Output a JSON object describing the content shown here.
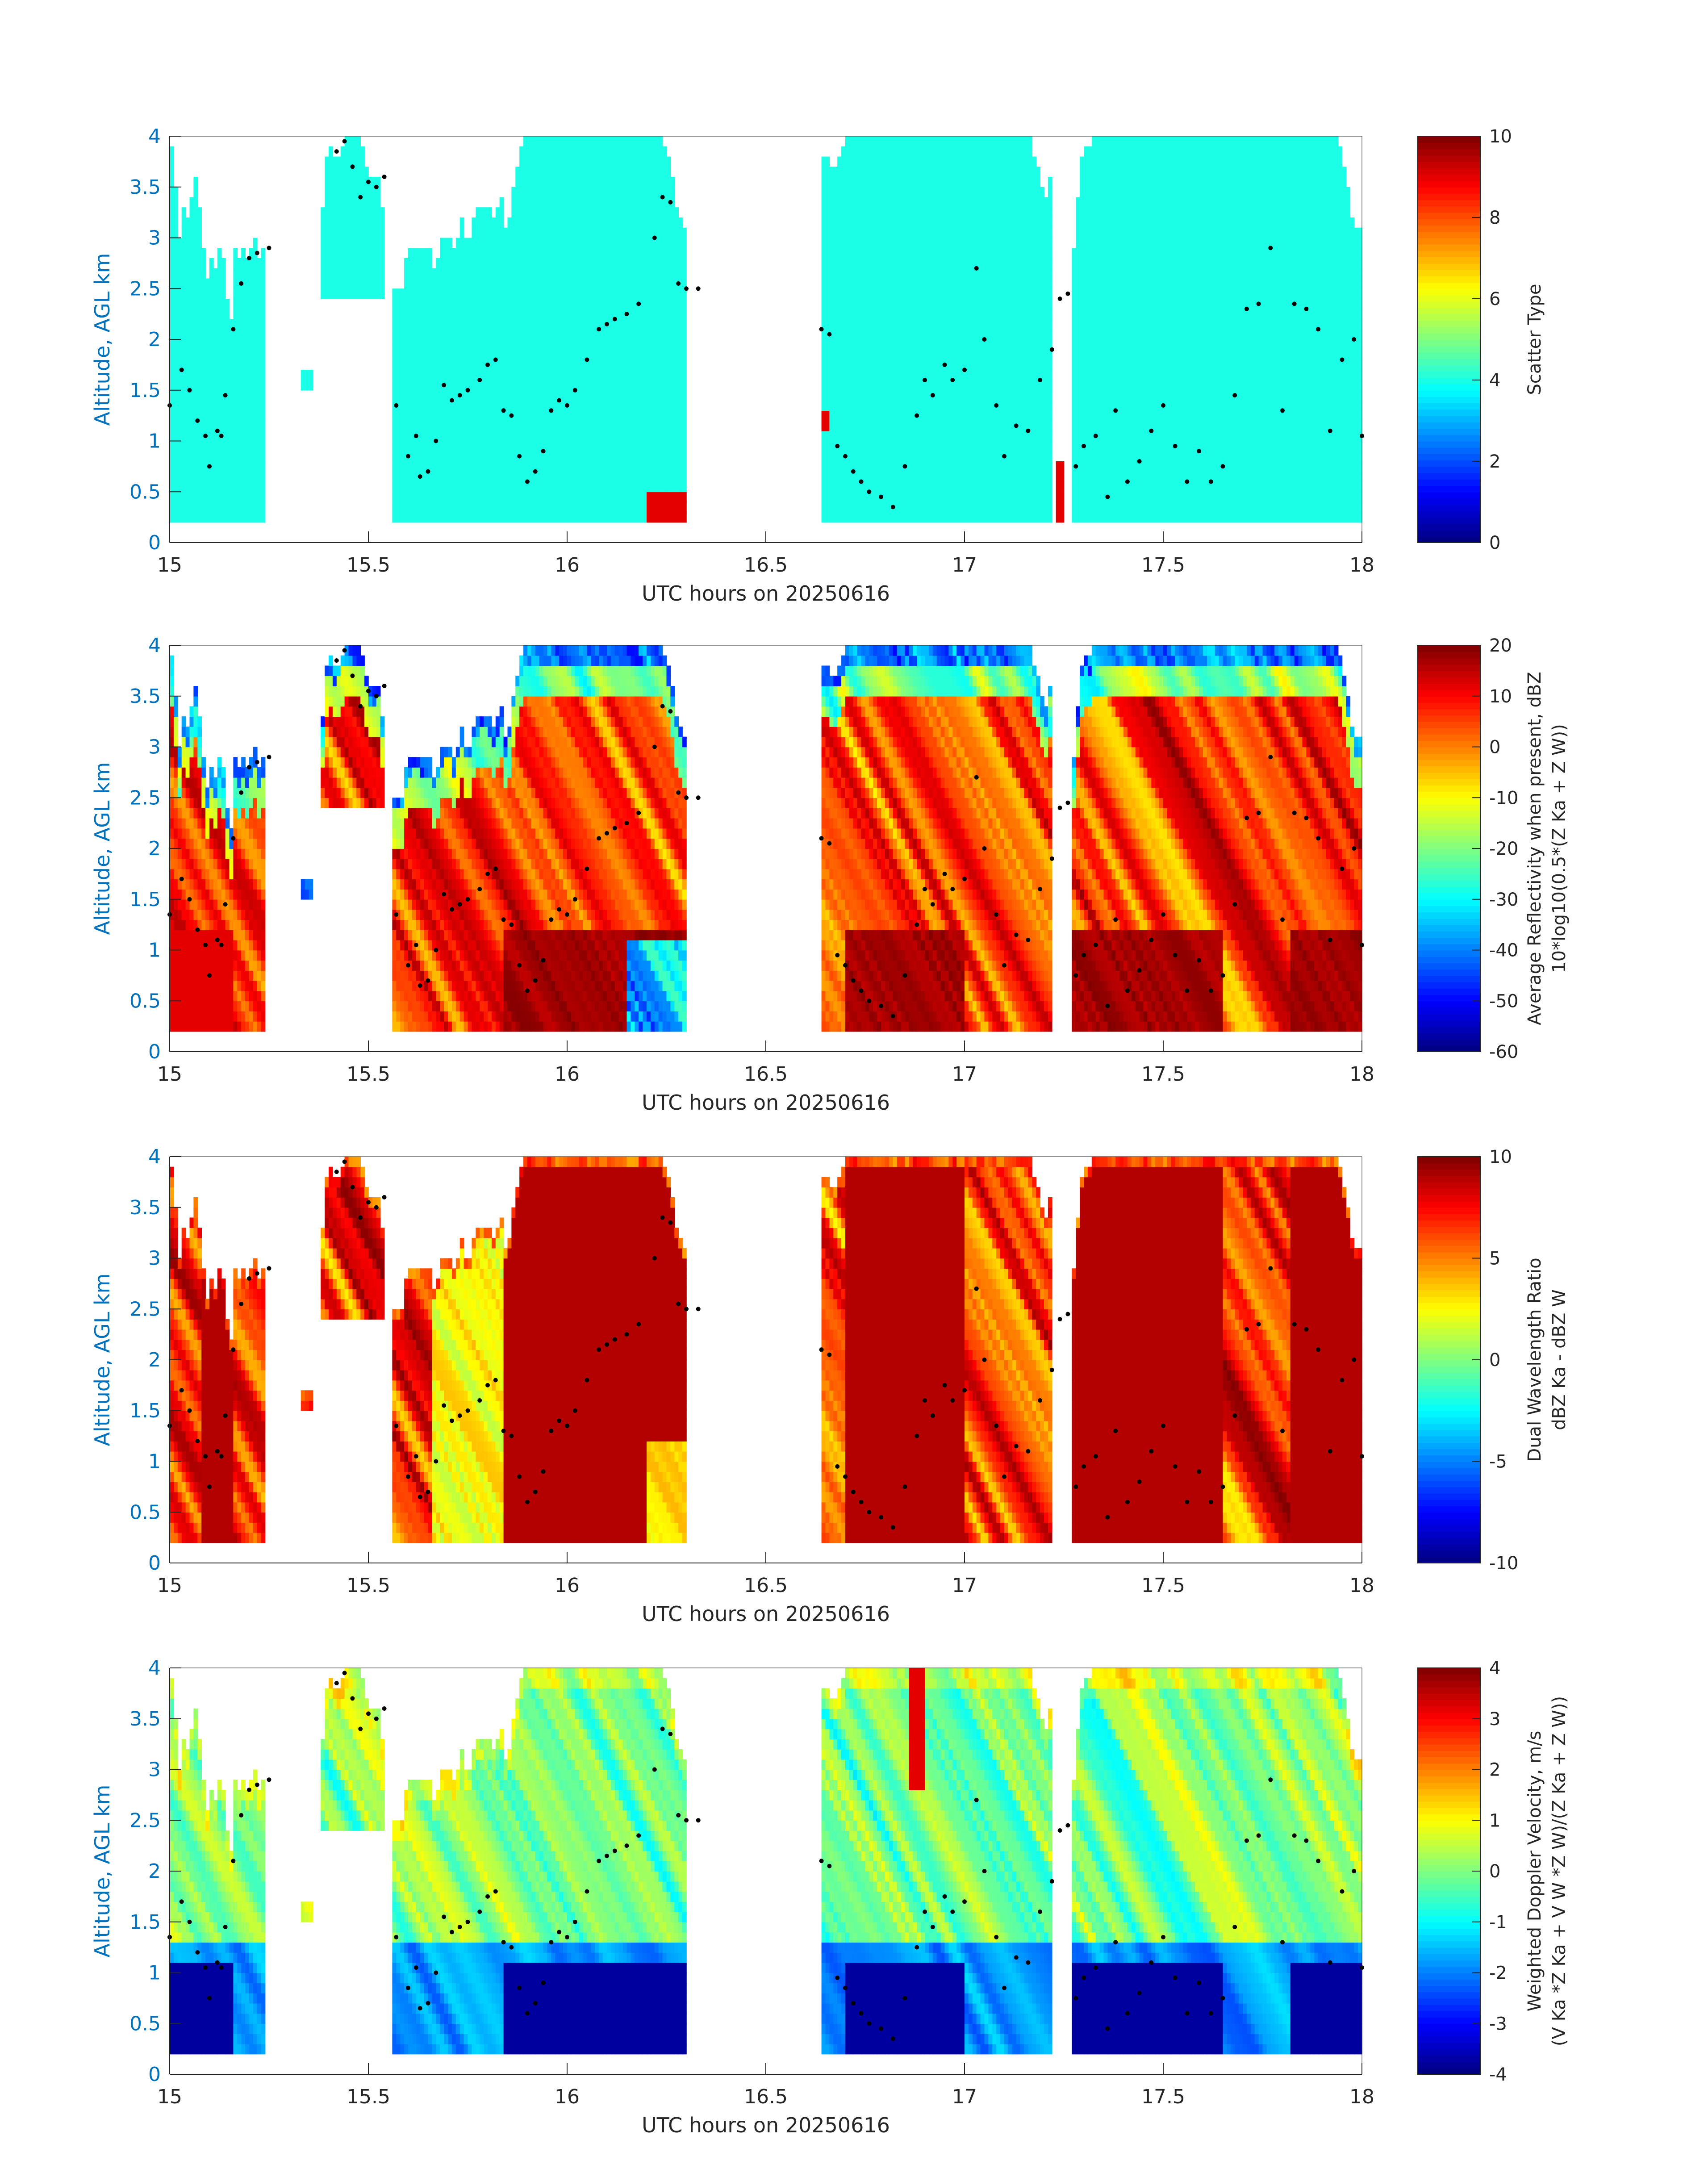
{
  "chart_data": [
    {
      "type": "heatmap",
      "panel": 1,
      "xlabel": "UTC hours on 20250616",
      "ylabel": "Altitude, AGL km",
      "xlim": [
        15,
        18
      ],
      "ylim": [
        0,
        4
      ],
      "xticks": [
        "15",
        "15.5",
        "16",
        "16.5",
        "17",
        "17.5",
        "18"
      ],
      "yticks": [
        "0",
        "0.5",
        "1",
        "1.5",
        "2",
        "2.5",
        "3",
        "3.5",
        "4"
      ],
      "colorbar": {
        "label_lines": [
          "Scatter Type"
        ],
        "clim": [
          0,
          10
        ],
        "ticks": [
          "0",
          "2",
          "4",
          "6",
          "8",
          "10"
        ]
      },
      "field": "scatter_type"
    },
    {
      "type": "heatmap",
      "panel": 2,
      "xlabel": "UTC hours on 20250616",
      "ylabel": "Altitude, AGL km",
      "xlim": [
        15,
        18
      ],
      "ylim": [
        0,
        4
      ],
      "xticks": [
        "15",
        "15.5",
        "16",
        "16.5",
        "17",
        "17.5",
        "18"
      ],
      "yticks": [
        "0",
        "0.5",
        "1",
        "1.5",
        "2",
        "2.5",
        "3",
        "3.5",
        "4"
      ],
      "colorbar": {
        "label_lines": [
          "Average Reflectivity when present, dBZ",
          "10*log10(0.5*(Z Ka + Z W))"
        ],
        "clim": [
          -60,
          20
        ],
        "ticks": [
          "-60",
          "-50",
          "-40",
          "-30",
          "-20",
          "-10",
          "0",
          "10",
          "20"
        ]
      },
      "field": "reflectivity"
    },
    {
      "type": "heatmap",
      "panel": 3,
      "xlabel": "UTC hours on 20250616",
      "ylabel": "Altitude, AGL km",
      "xlim": [
        15,
        18
      ],
      "ylim": [
        0,
        4
      ],
      "xticks": [
        "15",
        "15.5",
        "16",
        "16.5",
        "17",
        "17.5",
        "18"
      ],
      "yticks": [
        "0",
        "0.5",
        "1",
        "1.5",
        "2",
        "2.5",
        "3",
        "3.5",
        "4"
      ],
      "colorbar": {
        "label_lines": [
          "Dual Wavelength Ratio",
          "dBZ Ka - dBZ W"
        ],
        "clim": [
          -10,
          10
        ],
        "ticks": [
          "-10",
          "-5",
          "0",
          "5",
          "10"
        ]
      },
      "field": "dwr"
    },
    {
      "type": "heatmap",
      "panel": 4,
      "xlabel": "UTC hours on 20250616",
      "ylabel": "Altitude, AGL km",
      "xlim": [
        15,
        18
      ],
      "ylim": [
        0,
        4
      ],
      "xticks": [
        "15",
        "15.5",
        "16",
        "16.5",
        "17",
        "17.5",
        "18"
      ],
      "yticks": [
        "0",
        "0.5",
        "1",
        "1.5",
        "2",
        "2.5",
        "3",
        "3.5",
        "4"
      ],
      "colorbar": {
        "label_lines": [
          "Weighted Doppler Velocity, m/s",
          "(V Ka *Z Ka + V W *Z W)/(Z Ka + Z W))"
        ],
        "clim": [
          -4,
          4
        ],
        "ticks": [
          "-4",
          "-3",
          "-2",
          "-1",
          "0",
          "1",
          "2",
          "3",
          "4"
        ]
      },
      "field": "velocity"
    }
  ],
  "shared": {
    "time_bin_hours": 0.01,
    "height_bin_km": 0.1,
    "precip_blocks": [
      {
        "t0": 15.0,
        "t1": 15.16,
        "top": [
          3.9,
          3.5,
          3.0,
          3.3,
          3.2,
          3.4,
          3.6,
          3.3,
          2.9,
          2.6,
          2.8,
          2.7,
          2.9,
          2.8,
          2.4,
          2.2
        ]
      },
      {
        "t0": 15.16,
        "t1": 15.24,
        "top": [
          2.9,
          2.8,
          2.9,
          2.8,
          2.9,
          3.0,
          2.8,
          2.9
        ]
      },
      {
        "t0": 15.33,
        "t1": 15.36,
        "bottom": 1.5,
        "top": 1.7
      },
      {
        "t0": 15.38,
        "t1": 15.54,
        "bottom": 2.4,
        "top": 4.0
      },
      {
        "t0": 15.56,
        "t1": 15.84,
        "top_left": 2.6,
        "top_right": 3.3
      },
      {
        "t0": 15.84,
        "t1": 16.3,
        "top": 4.0
      },
      {
        "t0": 16.64,
        "t1": 17.22,
        "top": 4.0
      },
      {
        "t0": 17.27,
        "t1": 18.0,
        "top": 4.0
      }
    ],
    "red_scatter_patches": [
      {
        "t0": 16.2,
        "t1": 16.3,
        "bottom": 0.2,
        "top": 0.55,
        "value": 9
      },
      {
        "t0": 16.64,
        "t1": 16.66,
        "bottom": 1.1,
        "top": 1.35,
        "value": 9
      },
      {
        "t0": 17.23,
        "t1": 17.25,
        "bottom": 0.25,
        "top": 0.85,
        "value": 9
      }
    ],
    "dot_track": [
      [
        15.0,
        1.35
      ],
      [
        15.03,
        1.7
      ],
      [
        15.05,
        1.5
      ],
      [
        15.07,
        1.2
      ],
      [
        15.09,
        1.05
      ],
      [
        15.1,
        0.75
      ],
      [
        15.12,
        1.1
      ],
      [
        15.13,
        1.05
      ],
      [
        15.14,
        1.45
      ],
      [
        15.16,
        2.1
      ],
      [
        15.18,
        2.55
      ],
      [
        15.2,
        2.8
      ],
      [
        15.22,
        2.85
      ],
      [
        15.25,
        2.9
      ],
      [
        15.42,
        3.85
      ],
      [
        15.44,
        3.95
      ],
      [
        15.46,
        3.7
      ],
      [
        15.48,
        3.4
      ],
      [
        15.5,
        3.55
      ],
      [
        15.52,
        3.5
      ],
      [
        15.54,
        3.6
      ],
      [
        15.57,
        1.35
      ],
      [
        15.6,
        0.85
      ],
      [
        15.62,
        1.05
      ],
      [
        15.63,
        0.65
      ],
      [
        15.65,
        0.7
      ],
      [
        15.67,
        1.0
      ],
      [
        15.69,
        1.55
      ],
      [
        15.71,
        1.4
      ],
      [
        15.73,
        1.45
      ],
      [
        15.75,
        1.5
      ],
      [
        15.78,
        1.6
      ],
      [
        15.8,
        1.75
      ],
      [
        15.82,
        1.8
      ],
      [
        15.84,
        1.3
      ],
      [
        15.86,
        1.25
      ],
      [
        15.88,
        0.85
      ],
      [
        15.9,
        0.6
      ],
      [
        15.92,
        0.7
      ],
      [
        15.94,
        0.9
      ],
      [
        15.96,
        1.3
      ],
      [
        15.98,
        1.4
      ],
      [
        16.0,
        1.35
      ],
      [
        16.02,
        1.5
      ],
      [
        16.05,
        1.8
      ],
      [
        16.08,
        2.1
      ],
      [
        16.1,
        2.15
      ],
      [
        16.12,
        2.2
      ],
      [
        16.15,
        2.25
      ],
      [
        16.18,
        2.35
      ],
      [
        16.22,
        3.0
      ],
      [
        16.24,
        3.4
      ],
      [
        16.26,
        3.35
      ],
      [
        16.28,
        2.55
      ],
      [
        16.3,
        2.5
      ],
      [
        16.33,
        2.5
      ],
      [
        16.64,
        2.1
      ],
      [
        16.66,
        2.05
      ],
      [
        16.68,
        0.95
      ],
      [
        16.7,
        0.85
      ],
      [
        16.72,
        0.7
      ],
      [
        16.74,
        0.6
      ],
      [
        16.76,
        0.5
      ],
      [
        16.79,
        0.45
      ],
      [
        16.82,
        0.35
      ],
      [
        16.85,
        0.75
      ],
      [
        16.88,
        1.25
      ],
      [
        16.9,
        1.6
      ],
      [
        16.92,
        1.45
      ],
      [
        16.95,
        1.75
      ],
      [
        16.97,
        1.6
      ],
      [
        17.0,
        1.7
      ],
      [
        17.03,
        2.7
      ],
      [
        17.05,
        2.0
      ],
      [
        17.08,
        1.35
      ],
      [
        17.1,
        0.85
      ],
      [
        17.13,
        1.15
      ],
      [
        17.16,
        1.1
      ],
      [
        17.19,
        1.6
      ],
      [
        17.22,
        1.9
      ],
      [
        17.24,
        2.4
      ],
      [
        17.26,
        2.45
      ],
      [
        17.28,
        0.75
      ],
      [
        17.3,
        0.95
      ],
      [
        17.33,
        1.05
      ],
      [
        17.36,
        0.45
      ],
      [
        17.38,
        1.3
      ],
      [
        17.41,
        0.6
      ],
      [
        17.44,
        0.8
      ],
      [
        17.47,
        1.1
      ],
      [
        17.5,
        1.35
      ],
      [
        17.53,
        0.95
      ],
      [
        17.56,
        0.6
      ],
      [
        17.59,
        0.9
      ],
      [
        17.62,
        0.6
      ],
      [
        17.65,
        0.75
      ],
      [
        17.68,
        1.45
      ],
      [
        17.71,
        2.3
      ],
      [
        17.74,
        2.35
      ],
      [
        17.77,
        2.9
      ],
      [
        17.8,
        1.3
      ],
      [
        17.83,
        2.35
      ],
      [
        17.86,
        2.3
      ],
      [
        17.89,
        2.1
      ],
      [
        17.92,
        1.1
      ],
      [
        17.95,
        1.8
      ],
      [
        17.98,
        2.0
      ],
      [
        18.0,
        1.05
      ]
    ]
  }
}
